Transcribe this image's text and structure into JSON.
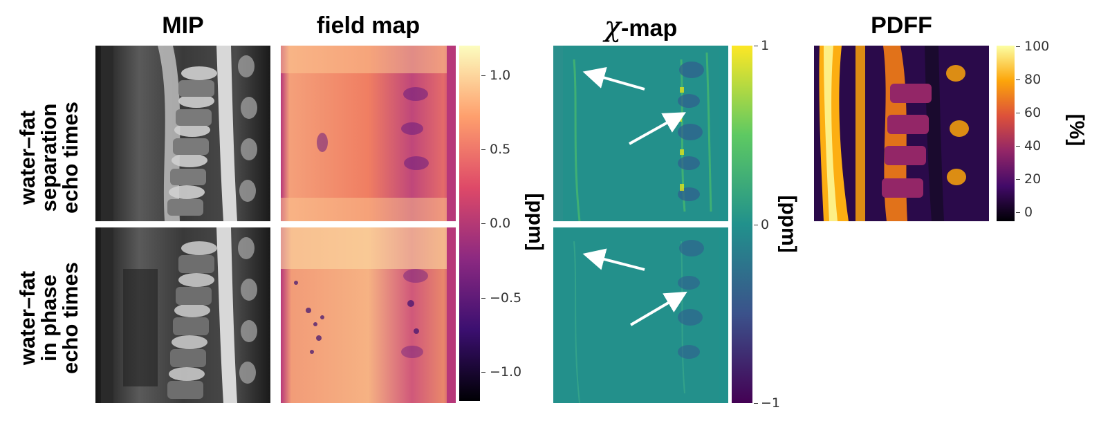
{
  "figure": {
    "columns": {
      "mip": "MIP",
      "field_map": "field map",
      "chi_symbol": "χ",
      "chi_suffix": "-map",
      "pdff": "PDFF"
    },
    "rows": {
      "top": [
        "water–fat",
        "separation",
        "echo times"
      ],
      "bottom": [
        "water–fat",
        "in phase",
        "echo times"
      ]
    },
    "colorbars": {
      "field_map": {
        "unit": "[ppm]",
        "ticks": [
          "1.0",
          "0.5",
          "0.0",
          "−0.5",
          "−1.0"
        ],
        "tick_values": [
          1.0,
          0.5,
          0.0,
          -0.5,
          -1.0
        ],
        "range": [
          -1.2,
          1.2
        ],
        "colormap": "magma"
      },
      "chi_map": {
        "unit": "[ppm]",
        "ticks": [
          "1",
          "0",
          "−1"
        ],
        "tick_values": [
          1,
          0,
          -1
        ],
        "range": [
          -1,
          1
        ],
        "colormap": "viridis"
      },
      "pdff": {
        "unit": "[%]",
        "ticks": [
          "100",
          "80",
          "60",
          "40",
          "20",
          "0"
        ],
        "tick_values": [
          100,
          80,
          60,
          40,
          20,
          0
        ],
        "range": [
          -5,
          100
        ],
        "colormap": "inferno"
      }
    },
    "colors": {
      "magma": [
        "#000004",
        "#3b0f70",
        "#8c2981",
        "#de4968",
        "#fe9f6d",
        "#fcfdbf"
      ],
      "viridis": [
        "#440154",
        "#3b528b",
        "#21918c",
        "#5ec962",
        "#fde725"
      ],
      "inferno": [
        "#000004",
        "#420a68",
        "#932667",
        "#dd513a",
        "#fca50a",
        "#fcffa4"
      ],
      "arrow": "#ffffff"
    },
    "arrows_per_chi_panel": 2
  }
}
